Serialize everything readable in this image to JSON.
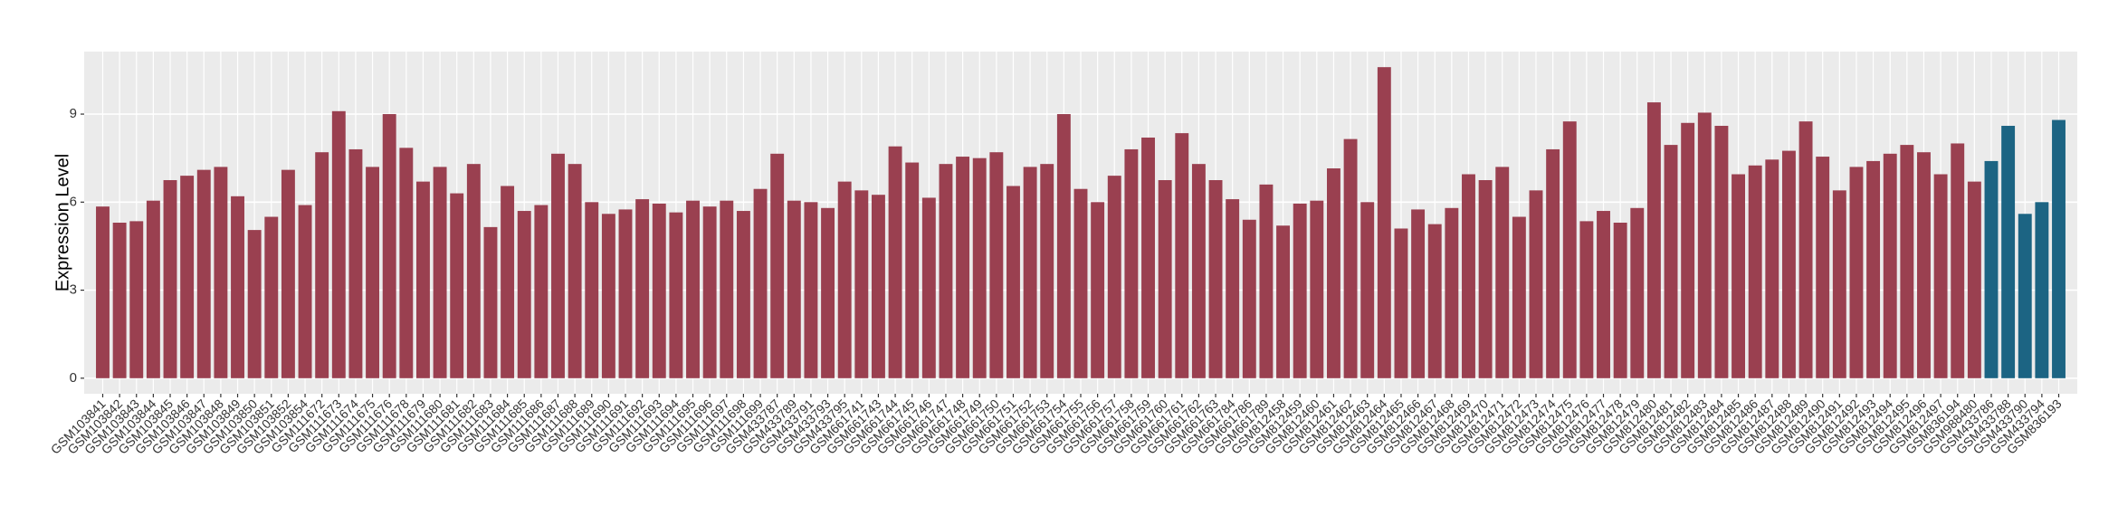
{
  "chart_data": {
    "type": "bar",
    "y_label": "Expression Level",
    "categories": [
      "GSM103841",
      "GSM103842",
      "GSM103843",
      "GSM103844",
      "GSM103845",
      "GSM103846",
      "GSM103847",
      "GSM103848",
      "GSM103849",
      "GSM103850",
      "GSM103851",
      "GSM103852",
      "GSM103854",
      "GSM111672",
      "GSM111673",
      "GSM111674",
      "GSM111675",
      "GSM111676",
      "GSM111678",
      "GSM111679",
      "GSM111680",
      "GSM111681",
      "GSM111682",
      "GSM111683",
      "GSM111684",
      "GSM111685",
      "GSM111686",
      "GSM111687",
      "GSM111688",
      "GSM111689",
      "GSM111690",
      "GSM111691",
      "GSM111692",
      "GSM111693",
      "GSM111694",
      "GSM111695",
      "GSM111696",
      "GSM111697",
      "GSM111698",
      "GSM111699",
      "GSM433787",
      "GSM433789",
      "GSM433791",
      "GSM433793",
      "GSM433795",
      "GSM661741",
      "GSM661743",
      "GSM661744",
      "GSM661745",
      "GSM661746",
      "GSM661747",
      "GSM661748",
      "GSM661749",
      "GSM661750",
      "GSM661751",
      "GSM661752",
      "GSM661753",
      "GSM661754",
      "GSM661755",
      "GSM661756",
      "GSM661757",
      "GSM661758",
      "GSM661759",
      "GSM661760",
      "GSM661761",
      "GSM661762",
      "GSM661763",
      "GSM661784",
      "GSM661786",
      "GSM661789",
      "GSM812458",
      "GSM812459",
      "GSM812460",
      "GSM812461",
      "GSM812462",
      "GSM812463",
      "GSM812464",
      "GSM812465",
      "GSM812466",
      "GSM812467",
      "GSM812468",
      "GSM812469",
      "GSM812470",
      "GSM812471",
      "GSM812472",
      "GSM812473",
      "GSM812474",
      "GSM812475",
      "GSM812476",
      "GSM812477",
      "GSM812478",
      "GSM812479",
      "GSM812480",
      "GSM812481",
      "GSM812482",
      "GSM812483",
      "GSM812484",
      "GSM812485",
      "GSM812486",
      "GSM812487",
      "GSM812488",
      "GSM812489",
      "GSM812490",
      "GSM812491",
      "GSM812492",
      "GSM812493",
      "GSM812494",
      "GSM812495",
      "GSM812496",
      "GSM812497",
      "GSM836194",
      "GSM988480",
      "GSM433786",
      "GSM433788",
      "GSM433790",
      "GSM433794",
      "GSM836193"
    ],
    "values": [
      5.85,
      5.3,
      5.35,
      6.05,
      6.75,
      6.9,
      7.1,
      7.2,
      6.2,
      5.05,
      5.5,
      7.1,
      5.9,
      7.7,
      9.1,
      7.8,
      7.2,
      9.0,
      7.85,
      6.7,
      7.2,
      6.3,
      7.3,
      5.15,
      6.55,
      5.7,
      5.9,
      7.65,
      7.3,
      6.0,
      5.6,
      5.75,
      6.1,
      5.95,
      5.65,
      6.05,
      5.85,
      6.05,
      5.7,
      6.45,
      7.65,
      6.05,
      6.0,
      5.8,
      6.7,
      6.4,
      6.25,
      7.9,
      7.35,
      6.15,
      7.3,
      7.55,
      7.5,
      7.7,
      6.55,
      7.2,
      7.3,
      9.0,
      6.45,
      6.0,
      6.9,
      7.8,
      8.2,
      6.75,
      8.35,
      7.3,
      6.75,
      6.1,
      5.4,
      6.6,
      5.2,
      5.95,
      6.05,
      7.15,
      8.15,
      6.0,
      10.6,
      5.1,
      5.75,
      5.25,
      5.8,
      6.95,
      6.75,
      7.2,
      5.5,
      6.4,
      7.8,
      8.75,
      5.35,
      5.7,
      5.3,
      5.8,
      9.4,
      7.95,
      8.7,
      9.05,
      8.6,
      6.95,
      7.25,
      7.45,
      7.75,
      8.75,
      7.55,
      6.4,
      7.2,
      7.4,
      7.65,
      7.95,
      7.7,
      6.95,
      8.0,
      6.7,
      7.4,
      8.6,
      5.6,
      6.0,
      8.8
    ],
    "group_colors": {
      "default": "#9a4050",
      "highlight": "#1c6483"
    },
    "highlight_from": 112,
    "ylim": [
      -0.53,
      11.13
    ],
    "yticks": [
      0,
      3,
      6,
      9
    ],
    "grid": true
  }
}
